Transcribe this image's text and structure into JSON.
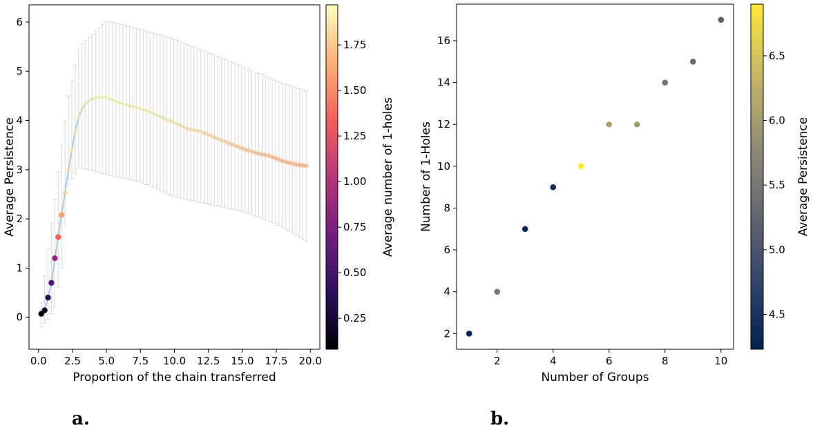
{
  "panel_labels": [
    "a.",
    "b."
  ],
  "colors": {
    "errorbar": "#d9d9d9",
    "trend_line": "#a8cbe0",
    "magma_stops": [
      "#000004",
      "#2c115f",
      "#721f81",
      "#b73779",
      "#f1605d",
      "#feb078",
      "#fcfdbf"
    ],
    "cividis_stops": [
      "#00224e",
      "#35456c",
      "#666970",
      "#948e77",
      "#c8b866",
      "#fee838"
    ]
  },
  "chart_data": [
    {
      "type": "scatter",
      "name": "persistence-vs-proportion",
      "title": "",
      "xlabel": "Proportion of the chain transferred",
      "ylabel": "Average Persistence",
      "xlim": [
        -0.7,
        20.7
      ],
      "ylim": [
        -0.65,
        6.35
      ],
      "xticks": [
        "0.0",
        "2.5",
        "5.0",
        "7.5",
        "10.0",
        "12.5",
        "15.0",
        "17.5",
        "20.0"
      ],
      "yticks": [
        "0",
        "1",
        "2",
        "3",
        "4",
        "5",
        "6"
      ],
      "colorbar": {
        "label": "Average number of 1-holes",
        "colormap": "magma",
        "range": [
          0.08,
          1.97
        ],
        "ticks": [
          "0.25",
          "0.50",
          "0.75",
          "1.00",
          "1.25",
          "1.50",
          "1.75"
        ]
      },
      "series": [
        {
          "name": "mean",
          "x_start": 0.2,
          "x_step": 0.25,
          "count": 79,
          "y_knots_x": [
            0.2,
            0.45,
            0.7,
            0.95,
            1.2,
            1.45,
            1.7,
            1.95,
            2.2,
            2.45,
            2.7,
            3.0,
            3.5,
            4.0,
            4.5,
            5.0,
            6.0,
            7.0,
            8.0,
            9.0,
            10.0,
            11.0,
            12.0,
            13.0,
            14.0,
            15.0,
            16.0,
            17.0,
            18.0,
            19.0,
            19.7
          ],
          "y_knots": [
            0.07,
            0.14,
            0.4,
            0.7,
            1.2,
            1.63,
            2.08,
            2.53,
            3.0,
            3.4,
            3.78,
            4.13,
            4.36,
            4.44,
            4.48,
            4.47,
            4.35,
            4.28,
            4.2,
            4.07,
            3.95,
            3.83,
            3.77,
            3.65,
            3.54,
            3.43,
            3.34,
            3.28,
            3.17,
            3.1,
            3.08
          ],
          "lower_knots_x": [
            0.2,
            0.7,
            1.2,
            1.7,
            2.2,
            3.0,
            5.0,
            7.5,
            10.0,
            12.5,
            15.0,
            17.5,
            19.7
          ],
          "lower_knots": [
            -0.2,
            -0.05,
            0.2,
            1.0,
            2.7,
            3.05,
            2.9,
            2.75,
            2.45,
            2.3,
            2.15,
            1.9,
            1.55
          ],
          "upper_knots_x": [
            0.2,
            0.7,
            1.2,
            1.7,
            2.2,
            3.0,
            5.0,
            7.5,
            10.0,
            12.5,
            15.0,
            17.5,
            19.7
          ],
          "upper_knots": [
            0.3,
            1.4,
            2.4,
            3.5,
            4.5,
            5.5,
            6.03,
            5.85,
            5.65,
            5.38,
            5.1,
            4.8,
            4.6
          ],
          "color_knots_x": [
            0.2,
            0.45,
            0.7,
            0.95,
            1.2,
            1.45,
            1.7,
            1.95,
            2.2,
            2.45,
            3.0,
            5.0,
            7.5,
            10.0,
            12.5,
            15.0,
            17.5,
            19.7
          ],
          "color_knots": [
            0.08,
            0.15,
            0.35,
            0.55,
            0.9,
            1.35,
            1.6,
            1.72,
            1.8,
            1.86,
            1.9,
            1.93,
            1.92,
            1.88,
            1.8,
            1.72,
            1.65,
            1.6
          ]
        }
      ]
    },
    {
      "type": "scatter",
      "name": "holes-vs-groups",
      "title": "",
      "xlabel": "Number of Groups",
      "ylabel": "Number of 1-Holes",
      "xlim": [
        0.55,
        10.45
      ],
      "ylim": [
        1.25,
        17.75
      ],
      "xticks": [
        "2",
        "4",
        "6",
        "8",
        "10"
      ],
      "yticks": [
        "2",
        "4",
        "6",
        "8",
        "10",
        "12",
        "14",
        "16"
      ],
      "colorbar": {
        "label": "Average Persistence",
        "colormap": "cividis",
        "range": [
          4.23,
          6.9
        ],
        "ticks": [
          "4.5",
          "5.0",
          "5.5",
          "6.0",
          "6.5"
        ]
      },
      "x": [
        1,
        2,
        3,
        4,
        5,
        6,
        7,
        8,
        9,
        10
      ],
      "y": [
        2,
        4,
        7,
        9,
        10,
        12,
        12,
        14,
        15,
        17
      ],
      "c": [
        4.25,
        5.5,
        4.3,
        4.4,
        6.9,
        6.05,
        5.95,
        5.45,
        5.3,
        5.2
      ]
    }
  ]
}
